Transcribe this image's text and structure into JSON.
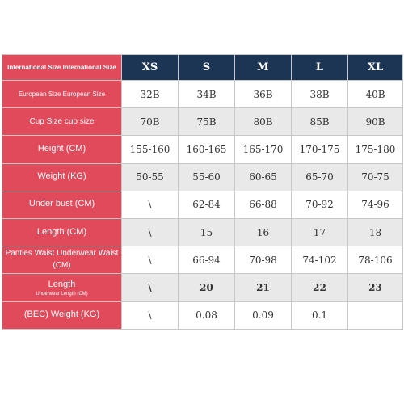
{
  "table": {
    "header_label": "International Size International Size",
    "sizes": [
      "XS",
      "S",
      "M",
      "L",
      "XL"
    ],
    "rows": [
      {
        "label": "European Size European Size",
        "values": [
          "32B",
          "34B",
          "36B",
          "38B",
          "40B"
        ]
      },
      {
        "label": "Cup Size cup size",
        "values": [
          "70B",
          "75B",
          "80B",
          "85B",
          "90B"
        ]
      },
      {
        "label": "Height (CM)",
        "values": [
          "155-160",
          "160-165",
          "165-170",
          "170-175",
          "175-180"
        ]
      },
      {
        "label": "Weight (KG)",
        "values": [
          "50-55",
          "55-60",
          "60-65",
          "65-70",
          "70-75"
        ]
      },
      {
        "label": "Under bust (CM)",
        "values": [
          "\\",
          "62-84",
          "66-88",
          "70-92",
          "74-96"
        ]
      },
      {
        "label": "Length (CM)",
        "values": [
          "\\",
          "15",
          "16",
          "17",
          "18"
        ]
      },
      {
        "label": "Panties Waist Underwear Waist (CM)",
        "values": [
          "\\",
          "66-94",
          "70-98",
          "74-102",
          "78-106"
        ]
      },
      {
        "label": "Length",
        "sublabel": "Underwear Length (CM)",
        "values": [
          "\\",
          "20",
          "21",
          "22",
          "23"
        ]
      },
      {
        "label": "(BEC) Weight (KG)",
        "values": [
          "\\",
          "0.08",
          "0.09",
          "0.1",
          ""
        ]
      }
    ]
  },
  "colors": {
    "label_bg": "#e04a5b",
    "header_bg": "#1c3554",
    "row_gray": "#e9e9e9",
    "row_white": "#ffffff"
  }
}
